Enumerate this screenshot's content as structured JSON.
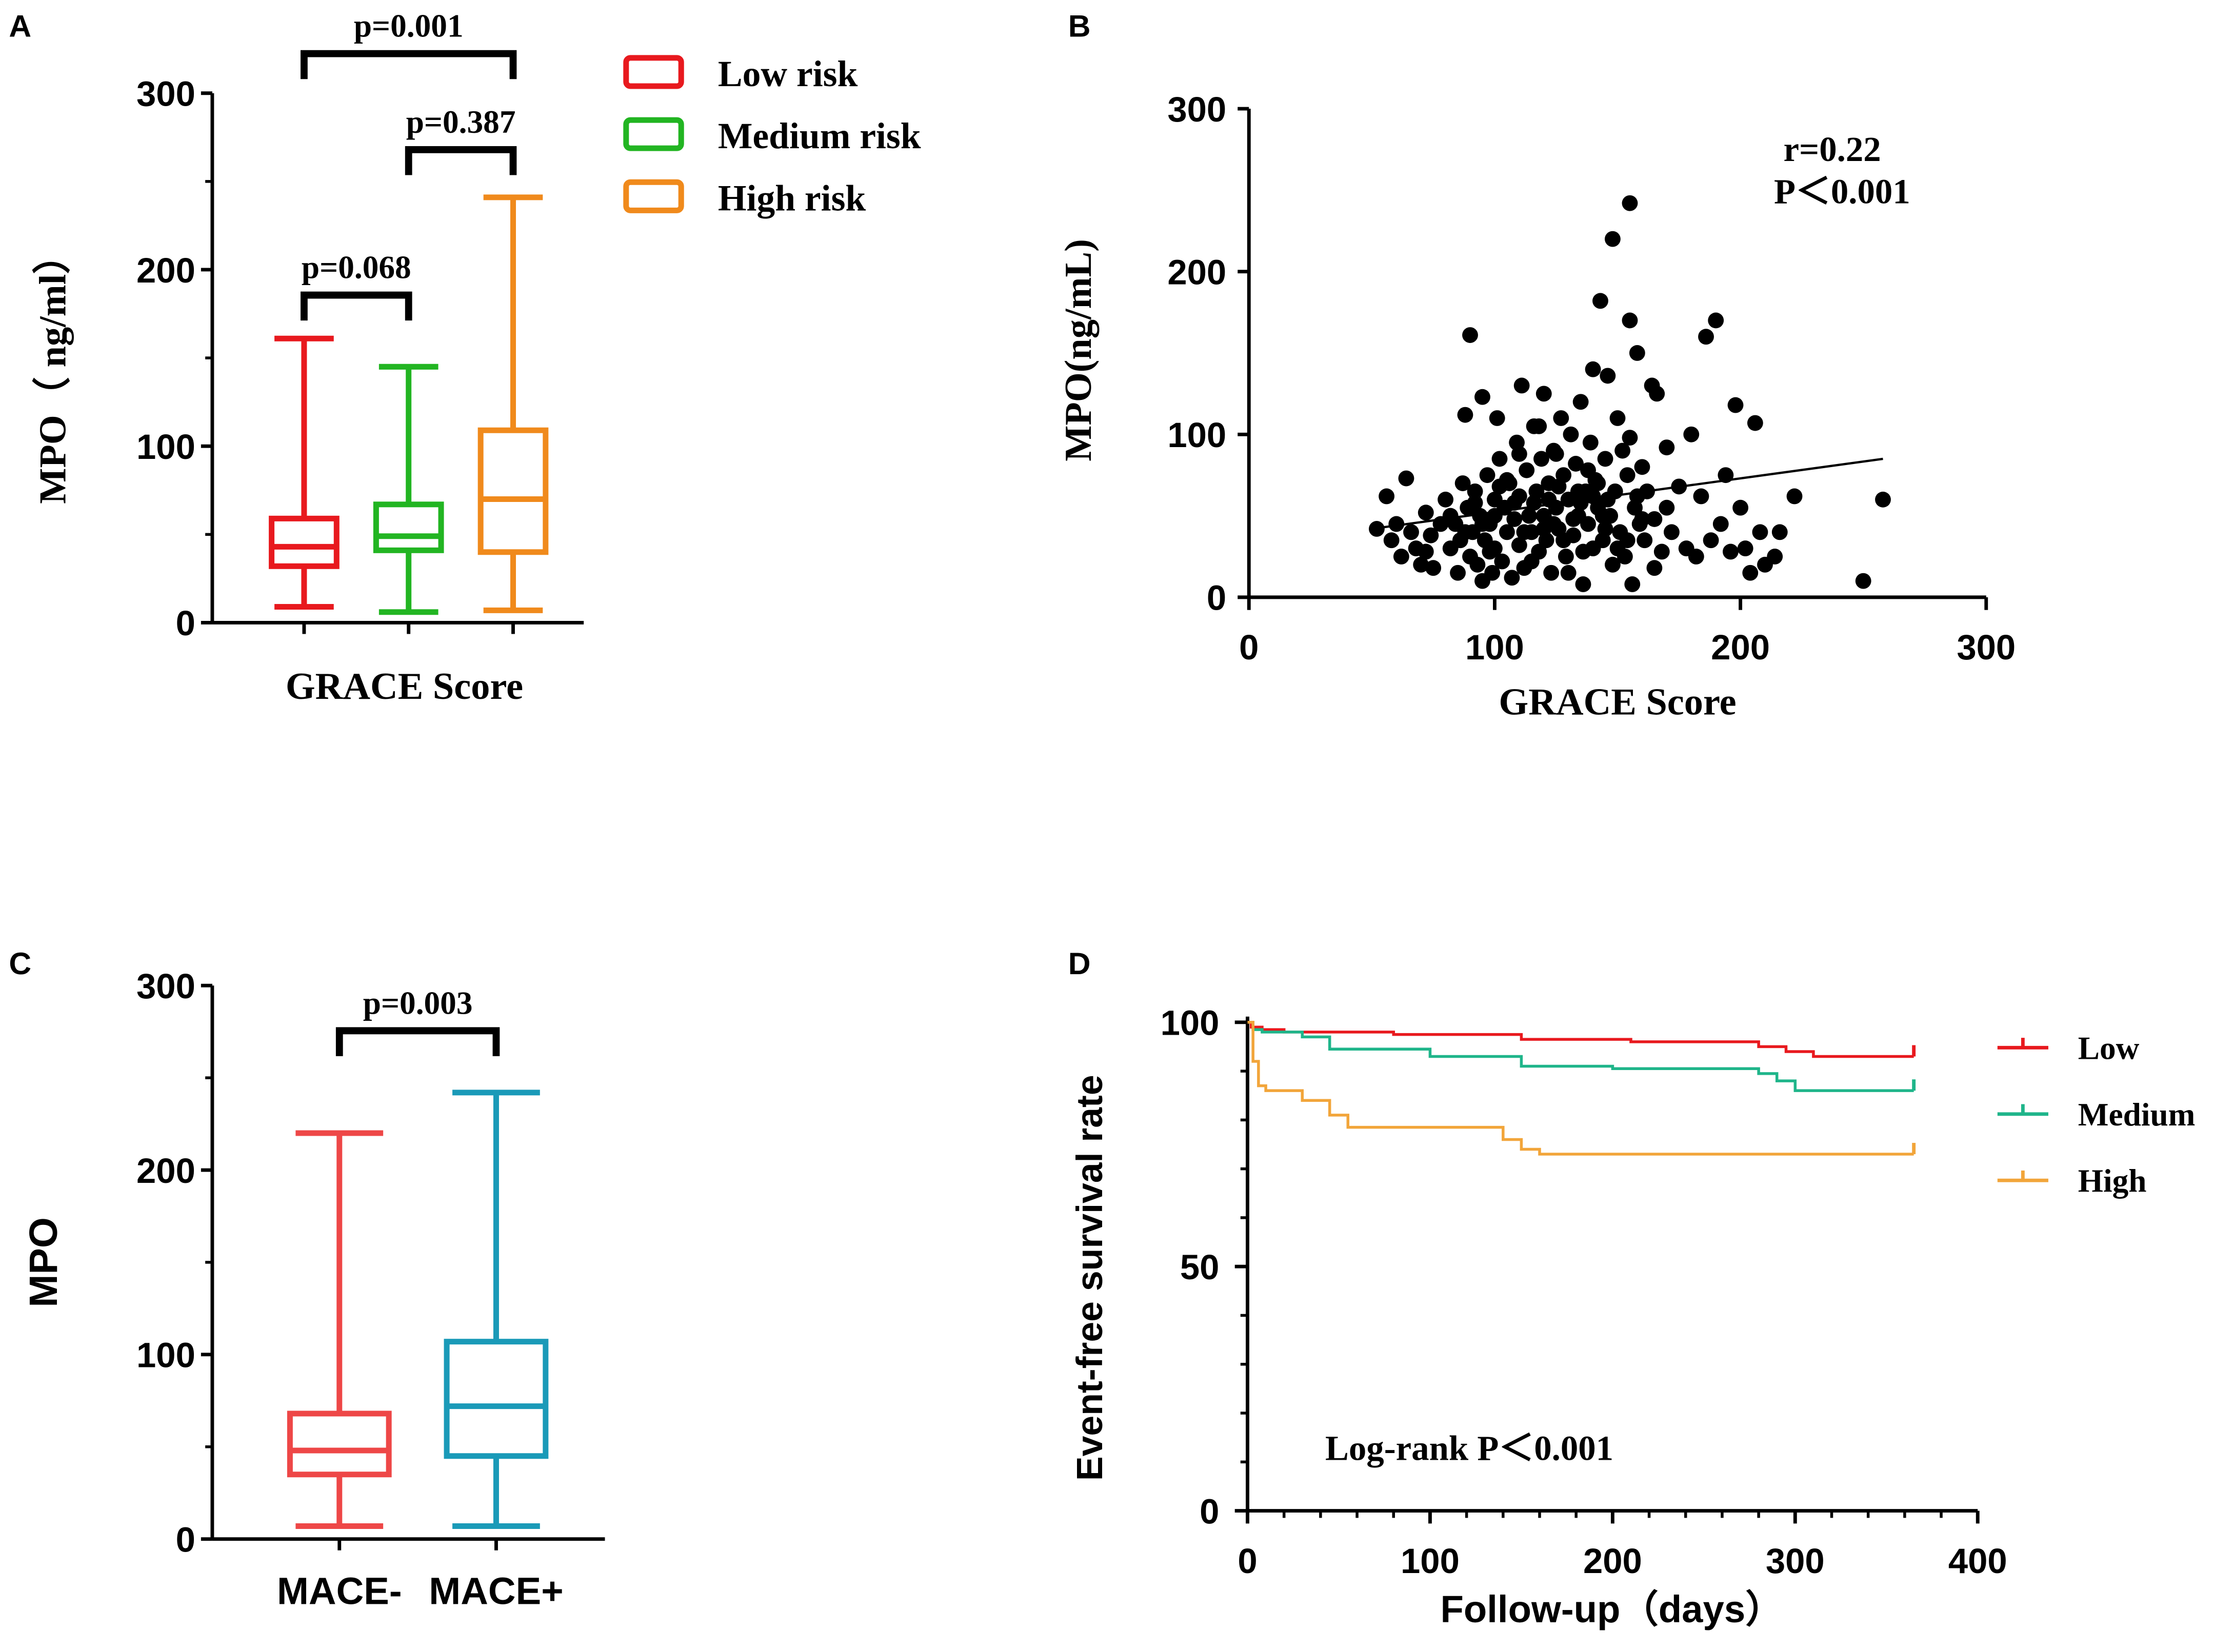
{
  "chart_data": [
    {
      "panel": "A",
      "type": "box",
      "xlabel": "GRACE Score",
      "ylabel": "MPO（ ng/ml）",
      "ylim": [
        0,
        300
      ],
      "yticks": [
        0,
        100,
        200,
        300
      ],
      "boxes": [
        {
          "name": "Low risk",
          "color": "#e8191e",
          "min": 9,
          "q1": 32,
          "median": 43,
          "q3": 59,
          "max": 161
        },
        {
          "name": "Medium risk",
          "color": "#22b522",
          "min": 6,
          "q1": 41,
          "median": 49,
          "q3": 67,
          "max": 145
        },
        {
          "name": "High risk",
          "color": "#f08a1c",
          "min": 7,
          "q1": 40,
          "median": 70,
          "q3": 109,
          "max": 241
        }
      ],
      "brackets": [
        {
          "from": 0,
          "to": 2,
          "label": "p=0.001"
        },
        {
          "from": 1,
          "to": 2,
          "label": "p=0.387"
        },
        {
          "from": 0,
          "to": 1,
          "label": "p=0.068"
        }
      ]
    },
    {
      "panel": "B",
      "type": "scatter",
      "xlabel": "GRACE Score",
      "ylabel": "MPO(ng/mL)",
      "xlim": [
        0,
        300
      ],
      "ylim": [
        0,
        300
      ],
      "xticks": [
        0,
        100,
        200,
        300
      ],
      "yticks": [
        0,
        100,
        200,
        300
      ],
      "annotation": [
        "r=0.22",
        "P＜0.001"
      ],
      "trend_line": {
        "x": [
          50,
          258
        ],
        "y": [
          42,
          85
        ]
      },
      "points": [
        [
          52,
          42
        ],
        [
          56,
          62
        ],
        [
          58,
          35
        ],
        [
          60,
          45
        ],
        [
          62,
          25
        ],
        [
          64,
          73
        ],
        [
          66,
          40
        ],
        [
          68,
          30
        ],
        [
          70,
          20
        ],
        [
          72,
          52
        ],
        [
          74,
          38
        ],
        [
          75,
          18
        ],
        [
          78,
          45
        ],
        [
          80,
          60
        ],
        [
          82,
          30
        ],
        [
          84,
          45
        ],
        [
          85,
          15
        ],
        [
          86,
          35
        ],
        [
          87,
          70
        ],
        [
          88,
          112
        ],
        [
          89,
          55
        ],
        [
          90,
          161
        ],
        [
          90,
          25
        ],
        [
          91,
          40
        ],
        [
          92,
          65
        ],
        [
          93,
          20
        ],
        [
          94,
          50
        ],
        [
          95,
          123
        ],
        [
          95,
          10
        ],
        [
          96,
          35
        ],
        [
          97,
          75
        ],
        [
          98,
          45
        ],
        [
          99,
          15
        ],
        [
          100,
          60
        ],
        [
          100,
          30
        ],
        [
          101,
          110
        ],
        [
          102,
          85
        ],
        [
          103,
          22
        ],
        [
          104,
          55
        ],
        [
          105,
          40
        ],
        [
          106,
          70
        ],
        [
          107,
          12
        ],
        [
          108,
          48
        ],
        [
          109,
          95
        ],
        [
          110,
          62
        ],
        [
          110,
          32
        ],
        [
          111,
          130
        ],
        [
          112,
          18
        ],
        [
          113,
          78
        ],
        [
          114,
          50
        ],
        [
          115,
          40
        ],
        [
          116,
          105
        ],
        [
          117,
          65
        ],
        [
          118,
          28
        ],
        [
          119,
          85
        ],
        [
          120,
          50
        ],
        [
          120,
          125
        ],
        [
          121,
          35
        ],
        [
          122,
          70
        ],
        [
          123,
          15
        ],
        [
          124,
          90
        ],
        [
          125,
          55
        ],
        [
          126,
          42
        ],
        [
          127,
          110
        ],
        [
          128,
          75
        ],
        [
          129,
          25
        ],
        [
          130,
          60
        ],
        [
          131,
          100
        ],
        [
          132,
          38
        ],
        [
          133,
          82
        ],
        [
          134,
          50
        ],
        [
          135,
          120
        ],
        [
          136,
          8
        ],
        [
          137,
          65
        ],
        [
          138,
          45
        ],
        [
          139,
          95
        ],
        [
          140,
          30
        ],
        [
          140,
          140
        ],
        [
          141,
          72
        ],
        [
          142,
          55
        ],
        [
          143,
          182
        ],
        [
          144,
          35
        ],
        [
          145,
          85
        ],
        [
          146,
          136
        ],
        [
          147,
          50
        ],
        [
          148,
          220
        ],
        [
          149,
          65
        ],
        [
          150,
          110
        ],
        [
          151,
          40
        ],
        [
          152,
          90
        ],
        [
          153,
          25
        ],
        [
          154,
          75
        ],
        [
          155,
          170
        ],
        [
          155,
          242
        ],
        [
          156,
          8
        ],
        [
          157,
          55
        ],
        [
          158,
          150
        ],
        [
          159,
          45
        ],
        [
          160,
          80
        ],
        [
          161,
          35
        ],
        [
          162,
          65
        ],
        [
          164,
          130
        ],
        [
          165,
          48
        ],
        [
          166,
          125
        ],
        [
          168,
          28
        ],
        [
          170,
          55
        ],
        [
          172,
          40
        ],
        [
          175,
          68
        ],
        [
          178,
          30
        ],
        [
          180,
          100
        ],
        [
          182,
          25
        ],
        [
          184,
          62
        ],
        [
          186,
          160
        ],
        [
          188,
          35
        ],
        [
          190,
          170
        ],
        [
          192,
          45
        ],
        [
          194,
          75
        ],
        [
          196,
          28
        ],
        [
          198,
          118
        ],
        [
          200,
          55
        ],
        [
          202,
          30
        ],
        [
          204,
          15
        ],
        [
          206,
          107
        ],
        [
          208,
          40
        ],
        [
          210,
          20
        ],
        [
          214,
          25
        ],
        [
          216,
          40
        ],
        [
          222,
          62
        ],
        [
          250,
          10
        ],
        [
          258,
          60
        ],
        [
          95,
          45
        ],
        [
          105,
          72
        ],
        [
          115,
          22
        ],
        [
          125,
          88
        ],
        [
          135,
          58
        ],
        [
          145,
          42
        ],
        [
          155,
          98
        ],
        [
          165,
          18
        ],
        [
          100,
          50
        ],
        [
          110,
          88
        ],
        [
          120,
          42
        ],
        [
          130,
          15
        ],
        [
          140,
          62
        ],
        [
          150,
          30
        ],
        [
          160,
          48
        ],
        [
          170,
          92
        ],
        [
          88,
          40
        ],
        [
          98,
          28
        ],
        [
          108,
          58
        ],
        [
          118,
          105
        ],
        [
          128,
          35
        ],
        [
          138,
          78
        ],
        [
          148,
          20
        ],
        [
          158,
          62
        ],
        [
          122,
          60
        ],
        [
          132,
          48
        ],
        [
          142,
          70
        ],
        [
          112,
          40
        ],
        [
          102,
          68
        ],
        [
          92,
          58
        ],
        [
          82,
          50
        ],
        [
          72,
          28
        ],
        [
          116,
          58
        ],
        [
          126,
          68
        ],
        [
          136,
          28
        ],
        [
          146,
          60
        ],
        [
          124,
          45
        ],
        [
          134,
          65
        ],
        [
          144,
          50
        ],
        [
          154,
          35
        ]
      ]
    },
    {
      "panel": "C",
      "type": "box",
      "ylabel": "MPO",
      "ylim": [
        0,
        300
      ],
      "yticks": [
        0,
        100,
        200,
        300
      ],
      "categories": [
        "MACE-",
        "MACE+"
      ],
      "boxes": [
        {
          "name": "MACE-",
          "color": "#ee4747",
          "min": 7,
          "q1": 35,
          "median": 48,
          "q3": 68,
          "max": 220
        },
        {
          "name": "MACE+",
          "color": "#1a9ab8",
          "min": 7,
          "q1": 45,
          "median": 72,
          "q3": 107,
          "max": 242
        }
      ],
      "brackets": [
        {
          "from": 0,
          "to": 1,
          "label": "p=0.003"
        }
      ]
    },
    {
      "panel": "D",
      "type": "line",
      "subtype": "kaplan-meier",
      "xlabel": "Follow-up（days）",
      "ylabel": "Event-free survival rate",
      "xlim": [
        0,
        400
      ],
      "ylim": [
        0,
        100
      ],
      "xticks": [
        0,
        100,
        200,
        300,
        400
      ],
      "yticks": [
        0,
        50,
        100
      ],
      "annotation": "Log-rank  P＜0.001",
      "series": [
        {
          "name": "Low",
          "color": "#e8191e",
          "x": [
            0,
            2,
            8,
            20,
            80,
            150,
            210,
            280,
            295,
            310,
            365
          ],
          "y": [
            100,
            99,
            98.5,
            98,
            97.5,
            96.5,
            96,
            95,
            94,
            93,
            93
          ]
        },
        {
          "name": "Medium",
          "color": "#1fb58a",
          "x": [
            0,
            3,
            8,
            30,
            45,
            100,
            150,
            200,
            280,
            290,
            300,
            365
          ],
          "y": [
            100,
            98.5,
            98,
            97,
            94.5,
            93,
            91,
            90.5,
            89.5,
            88,
            86,
            86
          ]
        },
        {
          "name": "High",
          "color": "#f2a53a",
          "x": [
            0,
            3,
            6,
            10,
            30,
            45,
            55,
            90,
            140,
            150,
            160,
            365
          ],
          "y": [
            100,
            92,
            87,
            86,
            84,
            81,
            78.5,
            78.5,
            76,
            74,
            73,
            73
          ]
        }
      ]
    }
  ],
  "panel_labels": [
    "A",
    "B",
    "C",
    "D"
  ]
}
